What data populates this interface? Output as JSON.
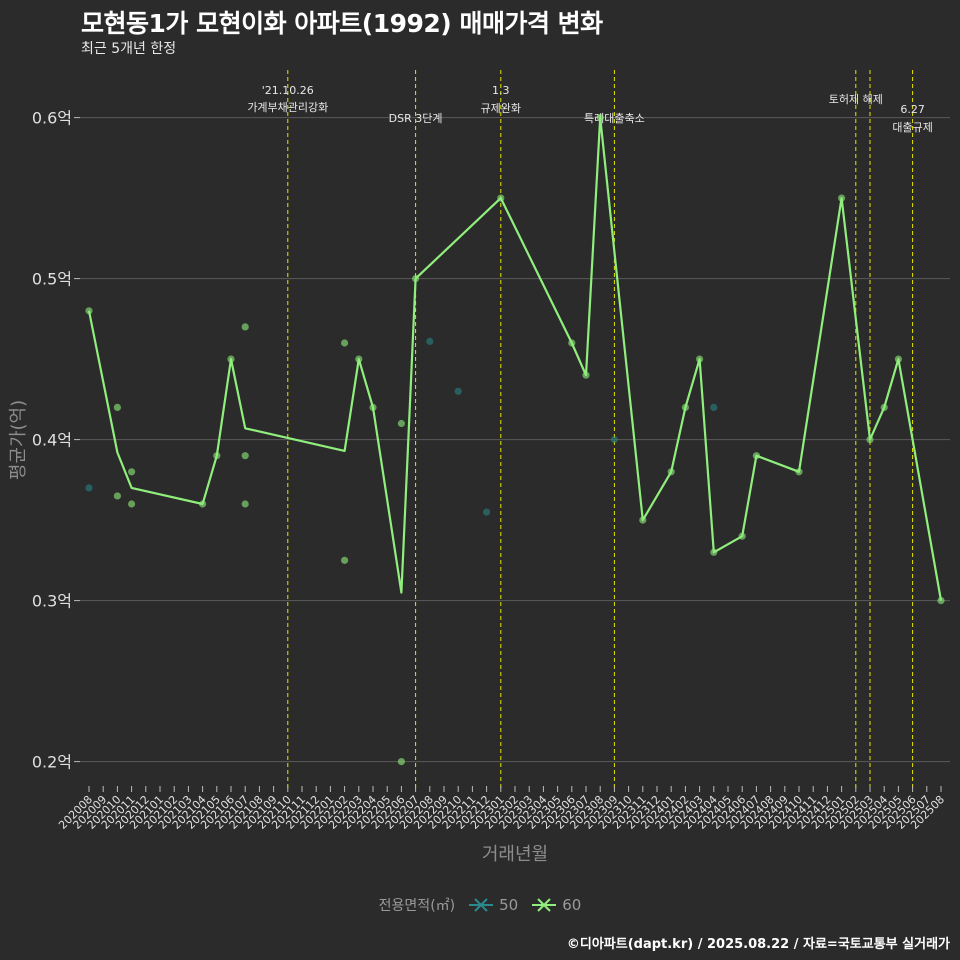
{
  "title": "모현동1가 모현이화 아파트(1992) 매매가격 변화",
  "subtitle": "최근 5개년 한정",
  "caption": "©디아파트(dapt.kr) / 2025.08.22 / 자료=국토교통부 실거래가",
  "legend": {
    "title": "전용면적(㎡)",
    "items": [
      {
        "label": "50",
        "color": "#2a8a8c"
      },
      {
        "label": "60",
        "color": "#90ee7c"
      }
    ]
  },
  "chart_data": {
    "type": "line",
    "xlabel": "거래년월",
    "ylabel": "평균가(억)",
    "ylim": [
      0.18,
      0.63
    ],
    "yticks": [
      0.2,
      0.3,
      0.4,
      0.5,
      0.6
    ],
    "ytick_labels": [
      "0.2억",
      "0.3억",
      "0.4억",
      "0.5억",
      "0.6억"
    ],
    "categories": [
      "202008",
      "202009",
      "202010",
      "202011",
      "202012",
      "202101",
      "202102",
      "202103",
      "202104",
      "202105",
      "202106",
      "202107",
      "202108",
      "202109",
      "202110",
      "202111",
      "202112",
      "202201",
      "202202",
      "202203",
      "202204",
      "202205",
      "202206",
      "202207",
      "202208",
      "202209",
      "202210",
      "202211",
      "202212",
      "202301",
      "202302",
      "202303",
      "202304",
      "202305",
      "202306",
      "202307",
      "202308",
      "202309",
      "202310",
      "202311",
      "202312",
      "202401",
      "202402",
      "202403",
      "202404",
      "202405",
      "202406",
      "202407",
      "202408",
      "202409",
      "202410",
      "202411",
      "202412",
      "202501",
      "202502",
      "202503",
      "202504",
      "202505",
      "202506",
      "202507",
      "202508"
    ],
    "grid": true,
    "series": [
      {
        "name": "50",
        "color": "#2a8a8c",
        "points": [
          {
            "x": "202008",
            "y": 0.37
          },
          {
            "x": "202208",
            "y": 0.461
          },
          {
            "x": "202210",
            "y": 0.43
          },
          {
            "x": "202212",
            "y": 0.355
          },
          {
            "x": "202309",
            "y": 0.4
          },
          {
            "x": "202404",
            "y": 0.42
          }
        ],
        "line": []
      },
      {
        "name": "60",
        "color": "#90ee7c",
        "points": [
          {
            "x": "202008",
            "y": 0.48
          },
          {
            "x": "202010",
            "y": 0.42
          },
          {
            "x": "202010",
            "y": 0.365
          },
          {
            "x": "202011",
            "y": 0.38
          },
          {
            "x": "202011",
            "y": 0.36
          },
          {
            "x": "202104",
            "y": 0.36
          },
          {
            "x": "202105",
            "y": 0.39
          },
          {
            "x": "202106",
            "y": 0.45
          },
          {
            "x": "202107",
            "y": 0.47
          },
          {
            "x": "202107",
            "y": 0.39
          },
          {
            "x": "202107",
            "y": 0.36
          },
          {
            "x": "202202",
            "y": 0.46
          },
          {
            "x": "202202",
            "y": 0.325
          },
          {
            "x": "202203",
            "y": 0.45
          },
          {
            "x": "202204",
            "y": 0.42
          },
          {
            "x": "202206",
            "y": 0.41
          },
          {
            "x": "202206",
            "y": 0.2
          },
          {
            "x": "202207",
            "y": 0.5
          },
          {
            "x": "202301",
            "y": 0.55
          },
          {
            "x": "202306",
            "y": 0.46
          },
          {
            "x": "202307",
            "y": 0.44
          },
          {
            "x": "202308",
            "y": 0.6
          },
          {
            "x": "202311",
            "y": 0.35
          },
          {
            "x": "202401",
            "y": 0.38
          },
          {
            "x": "202402",
            "y": 0.42
          },
          {
            "x": "202403",
            "y": 0.45
          },
          {
            "x": "202404",
            "y": 0.33
          },
          {
            "x": "202406",
            "y": 0.34
          },
          {
            "x": "202407",
            "y": 0.39
          },
          {
            "x": "202410",
            "y": 0.38
          },
          {
            "x": "202501",
            "y": 0.55
          },
          {
            "x": "202503",
            "y": 0.4
          },
          {
            "x": "202504",
            "y": 0.42
          },
          {
            "x": "202505",
            "y": 0.45
          },
          {
            "x": "202508",
            "y": 0.3
          }
        ],
        "line": [
          {
            "x": "202008",
            "y": 0.48
          },
          {
            "x": "202010",
            "y": 0.392
          },
          {
            "x": "202011",
            "y": 0.37
          },
          {
            "x": "202104",
            "y": 0.36
          },
          {
            "x": "202105",
            "y": 0.39
          },
          {
            "x": "202106",
            "y": 0.45
          },
          {
            "x": "202107",
            "y": 0.407
          },
          {
            "x": "202202",
            "y": 0.393
          },
          {
            "x": "202203",
            "y": 0.45
          },
          {
            "x": "202204",
            "y": 0.42
          },
          {
            "x": "202206",
            "y": 0.305
          },
          {
            "x": "202207",
            "y": 0.5
          },
          {
            "x": "202301",
            "y": 0.55
          },
          {
            "x": "202306",
            "y": 0.46
          },
          {
            "x": "202307",
            "y": 0.44
          },
          {
            "x": "202308",
            "y": 0.6
          },
          {
            "x": "202311",
            "y": 0.35
          },
          {
            "x": "202401",
            "y": 0.38
          },
          {
            "x": "202402",
            "y": 0.42
          },
          {
            "x": "202403",
            "y": 0.45
          },
          {
            "x": "202404",
            "y": 0.33
          },
          {
            "x": "202406",
            "y": 0.34
          },
          {
            "x": "202407",
            "y": 0.39
          },
          {
            "x": "202410",
            "y": 0.38
          },
          {
            "x": "202501",
            "y": 0.55
          },
          {
            "x": "202503",
            "y": 0.4
          },
          {
            "x": "202504",
            "y": 0.42
          },
          {
            "x": "202505",
            "y": 0.45
          },
          {
            "x": "202508",
            "y": 0.3
          }
        ]
      }
    ],
    "annotations": [
      {
        "x": "202110",
        "lines": [
          "'21.10.26",
          "가계부채관리강화"
        ]
      },
      {
        "x": "202207",
        "lines": [
          "DSR 3단계"
        ]
      },
      {
        "x": "202301",
        "lines": [
          "1.3",
          "규제완화"
        ]
      },
      {
        "x": "202309",
        "lines": [
          "특례대출축소"
        ]
      },
      {
        "x": "202502",
        "lines": [
          "토허제 해제"
        ]
      },
      {
        "x": "202503",
        "lines": []
      },
      {
        "x": "202506",
        "lines": [
          "6.27",
          "대출규제"
        ]
      }
    ]
  }
}
